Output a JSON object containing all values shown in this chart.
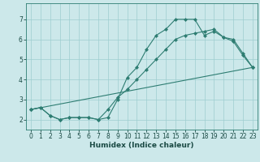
{
  "xlabel": "Humidex (Indice chaleur)",
  "ylabel": "",
  "background_color": "#cce8ea",
  "grid_color": "#9ecdd0",
  "line_color": "#2e7d72",
  "xlim": [
    -0.5,
    23.5
  ],
  "ylim": [
    1.5,
    7.8
  ],
  "xticks": [
    0,
    1,
    2,
    3,
    4,
    5,
    6,
    7,
    8,
    9,
    10,
    11,
    12,
    13,
    14,
    15,
    16,
    17,
    18,
    19,
    20,
    21,
    22,
    23
  ],
  "yticks": [
    2,
    3,
    4,
    5,
    6,
    7
  ],
  "line1_x": [
    0,
    1,
    2,
    3,
    4,
    5,
    6,
    7,
    8,
    9,
    10,
    11,
    12,
    13,
    14,
    15,
    16,
    17,
    18,
    19,
    20,
    21,
    22,
    23
  ],
  "line1_y": [
    2.5,
    2.6,
    2.2,
    2.0,
    2.1,
    2.1,
    2.1,
    2.0,
    2.1,
    3.0,
    4.1,
    4.6,
    5.5,
    6.2,
    6.5,
    7.0,
    7.0,
    7.0,
    6.2,
    6.4,
    6.1,
    6.0,
    5.3,
    4.6
  ],
  "line2_x": [
    0,
    1,
    2,
    3,
    4,
    5,
    6,
    7,
    8,
    9,
    10,
    11,
    12,
    13,
    14,
    15,
    16,
    17,
    18,
    19,
    20,
    21,
    22,
    23
  ],
  "line2_y": [
    2.5,
    2.6,
    2.2,
    2.0,
    2.1,
    2.1,
    2.1,
    2.0,
    2.5,
    3.1,
    3.5,
    4.0,
    4.5,
    5.0,
    5.5,
    6.0,
    6.2,
    6.3,
    6.4,
    6.5,
    6.1,
    5.9,
    5.2,
    4.6
  ],
  "line3_x": [
    0,
    23
  ],
  "line3_y": [
    2.5,
    4.6
  ]
}
